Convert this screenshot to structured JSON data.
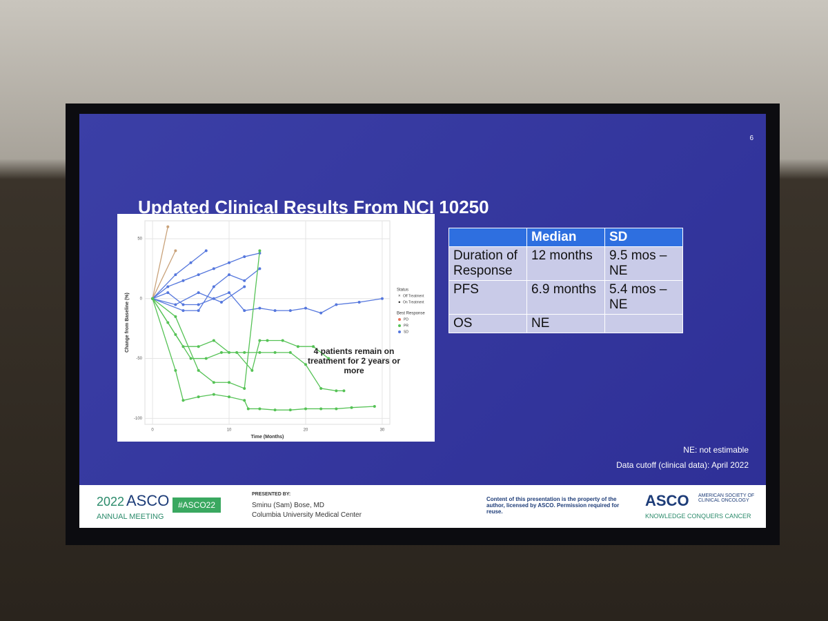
{
  "slide": {
    "number": "6",
    "title": "Updated Clinical Results From NCI 10250",
    "notes": [
      "NE: not estimable",
      "Data cutoff (clinical data): April 2022"
    ]
  },
  "chart_data": {
    "type": "line",
    "xlabel": "Time (Months)",
    "ylabel": "Change from Baseline (%)",
    "annotation": "4 patients remain on treatment for 2 years or more",
    "xlim": [
      -1,
      31
    ],
    "ylim": [
      -105,
      65
    ],
    "xticks": [
      0,
      10,
      20,
      30
    ],
    "yticks": [
      -100,
      -50,
      0,
      50
    ],
    "grid": true,
    "legend": {
      "status_title": "Status",
      "status_items": [
        "Off Treatment",
        "On Treatment"
      ],
      "response_title": "Best Response",
      "response_items": [
        {
          "name": "PD",
          "color": "#e8735a"
        },
        {
          "name": "PR",
          "color": "#55c255"
        },
        {
          "name": "SD",
          "color": "#5577dd"
        }
      ]
    },
    "series": [
      {
        "color": "#c9a27a",
        "x": [
          0,
          2
        ],
        "values": [
          0,
          60
        ]
      },
      {
        "color": "#c9a27a",
        "x": [
          0,
          3
        ],
        "values": [
          0,
          40
        ]
      },
      {
        "color": "#5577dd",
        "x": [
          0,
          2,
          4,
          6,
          8,
          10,
          12,
          14
        ],
        "values": [
          0,
          10,
          15,
          20,
          25,
          30,
          35,
          38
        ]
      },
      {
        "color": "#5577dd",
        "x": [
          0,
          2,
          4,
          6,
          8,
          10,
          12,
          14,
          16,
          18,
          20,
          22,
          24,
          27,
          30
        ],
        "values": [
          0,
          5,
          -5,
          -5,
          0,
          5,
          -10,
          -8,
          -10,
          -10,
          -8,
          -12,
          -5,
          -3,
          0
        ]
      },
      {
        "color": "#5577dd",
        "x": [
          0,
          3,
          5,
          7
        ],
        "values": [
          0,
          20,
          30,
          40
        ]
      },
      {
        "color": "#5577dd",
        "x": [
          0,
          4,
          6,
          8,
          10,
          12,
          14
        ],
        "values": [
          0,
          -10,
          -10,
          10,
          20,
          15,
          25
        ]
      },
      {
        "color": "#5577dd",
        "x": [
          0,
          3,
          6,
          9,
          12
        ],
        "values": [
          0,
          -5,
          5,
          -3,
          10
        ]
      },
      {
        "color": "#55c255",
        "x": [
          0,
          2,
          4,
          6,
          8,
          10,
          12,
          14,
          16,
          18,
          20,
          22,
          24,
          25
        ],
        "values": [
          0,
          -20,
          -40,
          -40,
          -35,
          -45,
          -45,
          -45,
          -45,
          -45,
          -55,
          -75,
          -77,
          -77
        ]
      },
      {
        "color": "#55c255",
        "x": [
          0,
          3,
          4,
          6,
          8,
          10,
          12,
          12.5,
          14,
          16,
          18,
          20,
          22,
          24,
          26,
          29
        ],
        "values": [
          0,
          -60,
          -85,
          -82,
          -80,
          -82,
          -85,
          -92,
          -92,
          -93,
          -93,
          -92,
          -92,
          -92,
          -91,
          -90
        ]
      },
      {
        "color": "#55c255",
        "x": [
          0,
          3,
          5,
          7,
          9,
          11,
          13,
          14,
          15,
          17,
          19,
          21,
          23
        ],
        "values": [
          0,
          -30,
          -50,
          -50,
          -45,
          -45,
          -60,
          -35,
          -35,
          -35,
          -40,
          -40,
          -50
        ]
      },
      {
        "color": "#55c255",
        "x": [
          0,
          3,
          6,
          8,
          10,
          12,
          14
        ],
        "values": [
          0,
          -15,
          -60,
          -70,
          -70,
          -75,
          40
        ]
      }
    ]
  },
  "table": {
    "headers": [
      "Median",
      "SD"
    ],
    "rows": [
      [
        "Duration of Response",
        "12 months",
        "9.5 mos – NE"
      ],
      [
        "PFS",
        "6.9 months",
        "5.4 mos – NE"
      ],
      [
        "OS",
        "NE"
      ]
    ]
  },
  "footer": {
    "year": "2022",
    "asco": "ASCO",
    "meeting": "ANNUAL MEETING",
    "hashtag": "#ASCO22",
    "presented_by": "PRESENTED BY:",
    "presenter": "Sminu (Sam) Bose, MD",
    "affiliation": "Columbia University Medical Center",
    "disclaimer": "Content of this presentation is the property of the author, licensed by ASCO. Permission required for reuse.",
    "logo": "ASCO",
    "society": "AMERICAN SOCIETY OF CLINICAL ONCOLOGY",
    "tagline": "KNOWLEDGE CONQUERS CANCER"
  }
}
